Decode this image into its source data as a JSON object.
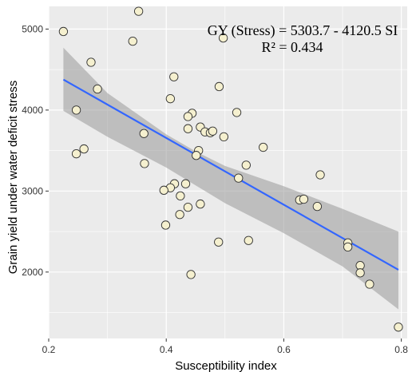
{
  "chart_data": {
    "type": "scatter",
    "xlabel": "Susceptibility index",
    "ylabel": "Grain yield under water deficit stress",
    "xlim": [
      0.2,
      0.81
    ],
    "ylim": [
      1180,
      5280
    ],
    "x_ticks": [
      0.2,
      0.4,
      0.6,
      0.8
    ],
    "x_tick_labels": [
      "0.2",
      "0.4",
      "0.6",
      "0.8"
    ],
    "y_ticks": [
      2000,
      3000,
      4000,
      5000
    ],
    "y_tick_labels": [
      "2000",
      "3000",
      "4000",
      "5000"
    ],
    "grid": true,
    "annotations": [
      "GY (Stress) = 5303.7 - 4120.5 SI",
      "R² = 0.434"
    ],
    "regression": {
      "intercept": 5303.7,
      "slope": -4120.5,
      "x_range": [
        0.225,
        0.795
      ]
    },
    "confidence_band": {
      "x": [
        0.225,
        0.3,
        0.4,
        0.45,
        0.5,
        0.6,
        0.7,
        0.795
      ],
      "upper": [
        4770,
        4210,
        3700,
        3490,
        3310,
        3060,
        2780,
        2500
      ],
      "lower": [
        3990,
        3670,
        3290,
        3070,
        2850,
        2480,
        2070,
        1540
      ]
    },
    "colors": {
      "panel": "#ebebeb",
      "grid": "#ffffff",
      "line": "#3366ff",
      "band": "#999999",
      "point_fill": "#f5f0cf",
      "point_stroke": "#333333"
    },
    "points": [
      {
        "x": 0.225,
        "y": 4970
      },
      {
        "x": 0.353,
        "y": 5220
      },
      {
        "x": 0.343,
        "y": 4850
      },
      {
        "x": 0.497,
        "y": 4890
      },
      {
        "x": 0.272,
        "y": 4590
      },
      {
        "x": 0.413,
        "y": 4410
      },
      {
        "x": 0.283,
        "y": 4260
      },
      {
        "x": 0.49,
        "y": 4290
      },
      {
        "x": 0.407,
        "y": 4140
      },
      {
        "x": 0.247,
        "y": 4000
      },
      {
        "x": 0.52,
        "y": 3970
      },
      {
        "x": 0.444,
        "y": 3960
      },
      {
        "x": 0.437,
        "y": 3920
      },
      {
        "x": 0.362,
        "y": 3710
      },
      {
        "x": 0.458,
        "y": 3790
      },
      {
        "x": 0.437,
        "y": 3770
      },
      {
        "x": 0.466,
        "y": 3730
      },
      {
        "x": 0.475,
        "y": 3720
      },
      {
        "x": 0.479,
        "y": 3740
      },
      {
        "x": 0.498,
        "y": 3670
      },
      {
        "x": 0.565,
        "y": 3540
      },
      {
        "x": 0.26,
        "y": 3520
      },
      {
        "x": 0.247,
        "y": 3460
      },
      {
        "x": 0.455,
        "y": 3500
      },
      {
        "x": 0.451,
        "y": 3440
      },
      {
        "x": 0.363,
        "y": 3340
      },
      {
        "x": 0.536,
        "y": 3320
      },
      {
        "x": 0.523,
        "y": 3160
      },
      {
        "x": 0.662,
        "y": 3200
      },
      {
        "x": 0.414,
        "y": 3090
      },
      {
        "x": 0.433,
        "y": 3090
      },
      {
        "x": 0.407,
        "y": 3040
      },
      {
        "x": 0.396,
        "y": 3010
      },
      {
        "x": 0.424,
        "y": 2940
      },
      {
        "x": 0.627,
        "y": 2890
      },
      {
        "x": 0.634,
        "y": 2900
      },
      {
        "x": 0.458,
        "y": 2840
      },
      {
        "x": 0.437,
        "y": 2800
      },
      {
        "x": 0.657,
        "y": 2810
      },
      {
        "x": 0.423,
        "y": 2710
      },
      {
        "x": 0.399,
        "y": 2580
      },
      {
        "x": 0.54,
        "y": 2390
      },
      {
        "x": 0.489,
        "y": 2370
      },
      {
        "x": 0.709,
        "y": 2360
      },
      {
        "x": 0.709,
        "y": 2310
      },
      {
        "x": 0.73,
        "y": 2080
      },
      {
        "x": 0.73,
        "y": 1990
      },
      {
        "x": 0.442,
        "y": 1970
      },
      {
        "x": 0.746,
        "y": 1850
      },
      {
        "x": 0.795,
        "y": 1320
      }
    ]
  }
}
